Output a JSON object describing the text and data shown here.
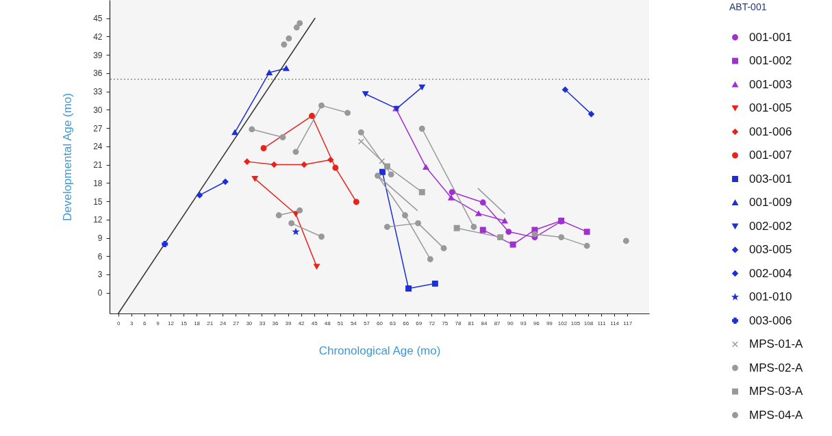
{
  "chart_data": {
    "type": "line",
    "xlabel": "Chronological Age (mo)",
    "ylabel": "Developmental Age (mo)",
    "legend_title": "ABT-001",
    "legend": "right",
    "xlim": [
      -2,
      122
    ],
    "ylim": [
      -3.4,
      48
    ],
    "xticks": [
      0,
      3,
      6,
      9,
      12,
      15,
      18,
      21,
      24,
      27,
      30,
      33,
      36,
      39,
      42,
      45,
      48,
      51,
      54,
      57,
      60,
      63,
      66,
      69,
      72,
      75,
      78,
      81,
      84,
      87,
      90,
      93,
      96,
      99,
      102,
      105,
      108,
      111,
      114,
      117
    ],
    "yticks": [
      0,
      3,
      6,
      9,
      12,
      15,
      18,
      21,
      24,
      27,
      30,
      33,
      36,
      39,
      42,
      45
    ],
    "ref_lines": [
      {
        "axis": "y",
        "value": 35,
        "color": "#555555",
        "line_style": "dotted"
      }
    ],
    "series": [
      {
        "name": "001-001",
        "color": "#a030d0",
        "marker": "circle",
        "x": [
          76.7,
          83.8,
          89.7,
          95.7,
          101.8
        ],
        "values": [
          16.5,
          14.8,
          10.0,
          9.1,
          11.7
        ]
      },
      {
        "name": "001-002",
        "color": "#a030d0",
        "marker": "square",
        "x": [
          83.8,
          90.7,
          95.7,
          101.8,
          107.7
        ],
        "values": [
          10.3,
          7.9,
          10.3,
          11.8,
          10.0
        ]
      },
      {
        "name": "001-003",
        "color": "#a030d0",
        "marker": "triangle",
        "x": [
          63.8,
          70.7,
          76.5,
          82.8,
          88.8
        ],
        "values": [
          30.2,
          20.6,
          15.6,
          13.0,
          11.8
        ]
      },
      {
        "name": "001-005",
        "color": "#e8231c",
        "marker": "triangle-down",
        "x": [
          31.4,
          40.8,
          45.6
        ],
        "values": [
          18.7,
          12.9,
          4.3
        ]
      },
      {
        "name": "001-006",
        "color": "#e8231c",
        "marker": "diamond",
        "x": [
          29.6,
          35.8,
          42.7,
          48.8
        ],
        "values": [
          21.5,
          21.0,
          21.0,
          21.8
        ]
      },
      {
        "name": "001-007",
        "color": "#e8231c",
        "marker": "circle",
        "x": [
          33.4,
          44.5,
          49.9,
          54.7
        ],
        "values": [
          23.7,
          29.0,
          20.5,
          14.9
        ]
      },
      {
        "name": "003-001",
        "color": "#1c2fd9",
        "marker": "square",
        "x": [
          60.7,
          66.7,
          72.8
        ],
        "values": [
          19.8,
          0.7,
          1.5
        ]
      },
      {
        "name": "001-009",
        "color": "#1c2fd9",
        "marker": "triangle",
        "x": [
          26.8,
          34.7,
          38.6
        ],
        "values": [
          26.3,
          36.1,
          36.8
        ]
      },
      {
        "name": "002-002",
        "color": "#1c2fd9",
        "marker": "triangle-down",
        "x": [
          56.8,
          64.0,
          69.8
        ],
        "values": [
          32.6,
          30.2,
          33.7
        ]
      },
      {
        "name": "003-005",
        "color": "#1c2fd9",
        "marker": "diamond",
        "x": [
          102.7,
          108.7
        ],
        "values": [
          33.3,
          29.3
        ]
      },
      {
        "name": "002-004",
        "color": "#1c2fd9",
        "marker": "diamond",
        "x": [
          18.7,
          24.6
        ],
        "values": [
          16.0,
          18.2
        ]
      },
      {
        "name": "001-010",
        "color": "#1c2fd9",
        "marker": "star",
        "x": [
          40.8
        ],
        "values": [
          10.0
        ]
      },
      {
        "name": "003-006",
        "color": "#1c2fd9",
        "marker": "cross",
        "x": [
          10.7
        ],
        "values": [
          8.0
        ]
      },
      {
        "name": "MPS-01-A",
        "color": "#999999",
        "marker": "x",
        "x": [
          55.8,
          60.6
        ],
        "values": [
          24.8,
          21.6
        ]
      },
      {
        "name": "MPS-02-A",
        "color": "#999999",
        "marker": "circle",
        "x": [
          30.7,
          37.8
        ],
        "values": [
          26.8,
          25.5
        ]
      },
      {
        "name": "MPS-03-A",
        "color": "#999999",
        "marker": "square",
        "x": [
          61.8,
          69.8
        ],
        "values": [
          20.7,
          16.5
        ]
      },
      {
        "name": "MPS-04-A",
        "color": "#999999",
        "marker": "circle",
        "x": [
          40.8,
          46.7,
          52.7
        ],
        "values": [
          23.1,
          30.7,
          29.5
        ]
      },
      {
        "color": "#999999",
        "marker": "circle",
        "x": [
          55.8,
          62.7
        ],
        "values": [
          26.3,
          19.4
        ]
      },
      {
        "color": "#999999",
        "marker": "circle",
        "x": [
          36.9,
          41.7
        ],
        "values": [
          12.7,
          13.5
        ]
      },
      {
        "color": "#999999",
        "marker": "circle",
        "x": [
          39.8,
          46.7
        ],
        "values": [
          11.4,
          9.2
        ]
      },
      {
        "color": "#999999",
        "marker": "circle",
        "x": [
          59.6,
          65.9,
          71.7
        ],
        "values": [
          19.2,
          12.7,
          5.5
        ]
      },
      {
        "color": "#999999",
        "marker": "none",
        "x": [
          59.6,
          68.7
        ],
        "values": [
          19.2,
          13.5
        ]
      },
      {
        "color": "#999999",
        "marker": "circle",
        "x": [
          61.8,
          68.9,
          74.8
        ],
        "values": [
          10.8,
          11.4,
          7.3
        ]
      },
      {
        "color": "#999999",
        "marker": "circle",
        "x": [
          69.8,
          81.7
        ],
        "values": [
          26.9,
          10.8
        ]
      },
      {
        "color": "#999999",
        "marker": "square",
        "x": [
          77.8,
          87.8
        ],
        "values": [
          10.6,
          9.1
        ]
      },
      {
        "color": "#999999",
        "marker": "circle",
        "x": [
          95.7,
          101.8,
          107.7
        ],
        "values": [
          9.6,
          9.1,
          7.7
        ]
      },
      {
        "color": "#999999",
        "marker": "none",
        "x": [
          82.7,
          88.8
        ],
        "values": [
          17.1,
          13.0
        ]
      },
      {
        "color": "#999999",
        "marker": "circle",
        "x": [
          116.7
        ],
        "values": [
          8.5
        ]
      },
      {
        "type": "scatter",
        "color": "#999999",
        "marker": "circle",
        "x": [
          38.1,
          39.2,
          41.0,
          41.7
        ],
        "values": [
          40.7,
          41.7,
          43.5,
          44.2
        ]
      },
      {
        "color": "#333333",
        "marker": "none",
        "x": [
          0,
          45.2
        ],
        "values": [
          -3.4,
          45
        ]
      }
    ]
  }
}
